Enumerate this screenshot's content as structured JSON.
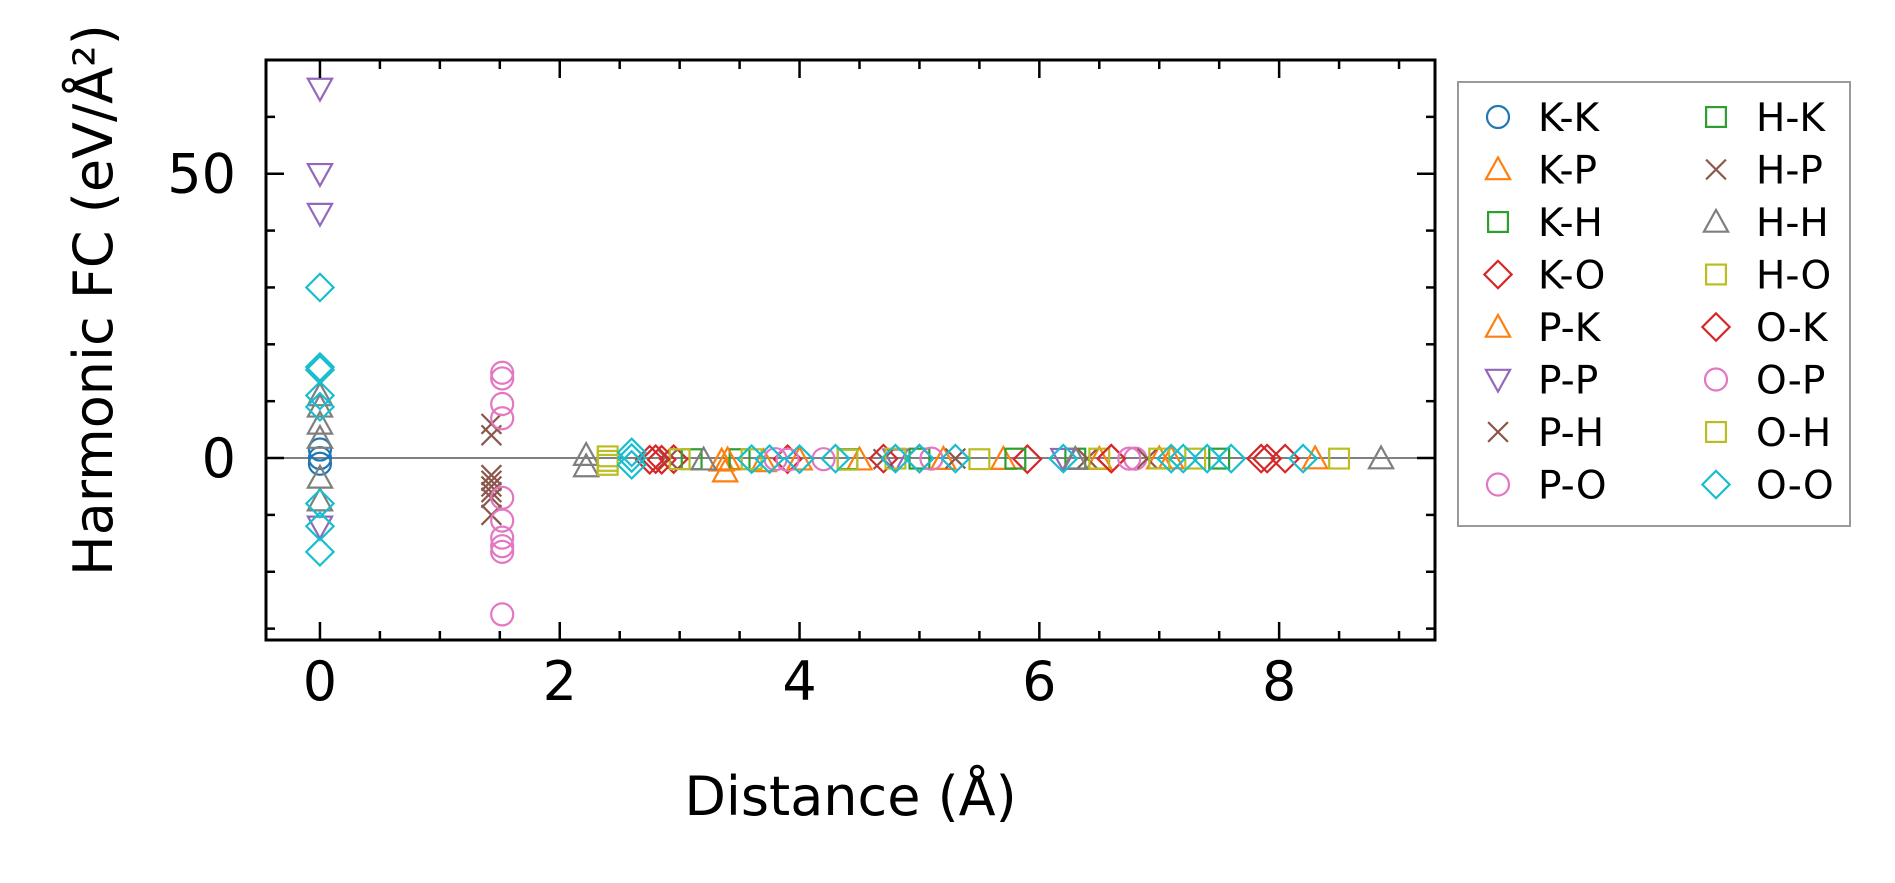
{
  "chart_data": {
    "type": "scatter",
    "title": "",
    "xlabel": "Distance (Å)",
    "ylabel": "Harmonic FC (eV/Å²)",
    "xlim": [
      -0.45,
      9.3
    ],
    "ylim": [
      -32,
      70
    ],
    "xticks": [
      0,
      2,
      4,
      6,
      8
    ],
    "yticks": [
      0,
      50
    ],
    "grid": false,
    "legend_position": "outside-right",
    "zero_line": 0,
    "series": [
      {
        "name": "K-K",
        "color": "#1f77b4",
        "marker": "circle",
        "points": [
          [
            0,
            0
          ],
          [
            0,
            1.5
          ],
          [
            0,
            -1
          ]
        ]
      },
      {
        "name": "K-P",
        "color": "#ff7f0e",
        "marker": "triangle-up",
        "points": [
          [
            3.35,
            -0.5
          ],
          [
            3.38,
            -2.4
          ],
          [
            4.0,
            -0.3
          ],
          [
            5.2,
            -0.2
          ],
          [
            6.5,
            -0.2
          ],
          [
            7.1,
            -0.1
          ],
          [
            8.3,
            -0.1
          ]
        ]
      },
      {
        "name": "K-H",
        "color": "#2ca02c",
        "marker": "square",
        "points": [
          [
            3.5,
            -0.2
          ],
          [
            5.0,
            -0.1
          ],
          [
            6.3,
            -0.1
          ],
          [
            7.5,
            -0.1
          ]
        ]
      },
      {
        "name": "K-O",
        "color": "#d62728",
        "marker": "diamond",
        "points": [
          [
            2.75,
            -0.3
          ],
          [
            2.85,
            -0.3
          ],
          [
            2.95,
            -0.2
          ],
          [
            3.9,
            -0.2
          ],
          [
            5.0,
            -0.1
          ],
          [
            5.9,
            -0.2
          ],
          [
            6.6,
            -0.1
          ],
          [
            7.85,
            -0.1
          ],
          [
            8.05,
            -0.1
          ]
        ]
      },
      {
        "name": "P-K",
        "color": "#ff7f0e",
        "marker": "triangle-up",
        "points": [
          [
            3.4,
            -0.3
          ],
          [
            3.7,
            -0.6
          ],
          [
            4.5,
            -0.3
          ],
          [
            5.7,
            -0.2
          ],
          [
            7.0,
            -0.1
          ]
        ]
      },
      {
        "name": "P-P",
        "color": "#9467bd",
        "marker": "triangle-down",
        "points": [
          [
            0,
            65
          ],
          [
            0,
            50
          ],
          [
            0,
            43
          ],
          [
            0,
            -12
          ],
          [
            4.8,
            -0.2
          ],
          [
            6.2,
            -0.1
          ]
        ]
      },
      {
        "name": "P-H",
        "color": "#8c564b",
        "marker": "x",
        "points": [
          [
            1.43,
            6
          ],
          [
            1.43,
            4
          ],
          [
            1.43,
            -3
          ],
          [
            1.43,
            -4
          ],
          [
            1.43,
            -5
          ],
          [
            1.43,
            -6
          ],
          [
            1.43,
            -7
          ],
          [
            1.43,
            -10
          ],
          [
            4.7,
            -0.2
          ],
          [
            6.4,
            -0.1
          ]
        ]
      },
      {
        "name": "P-O",
        "color": "#e377c2",
        "marker": "circle",
        "points": [
          [
            1.52,
            15
          ],
          [
            1.52,
            14
          ],
          [
            1.52,
            9.5
          ],
          [
            1.52,
            7
          ],
          [
            1.52,
            -7
          ],
          [
            1.52,
            -11
          ],
          [
            1.52,
            -14
          ],
          [
            1.52,
            -15.5
          ],
          [
            1.52,
            -16.5
          ],
          [
            1.52,
            -27.5
          ],
          [
            3.9,
            -0.3
          ],
          [
            4.2,
            -0.2
          ],
          [
            6.8,
            -0.1
          ]
        ]
      },
      {
        "name": "H-K",
        "color": "#2ca02c",
        "marker": "square",
        "points": [
          [
            3.1,
            -0.2
          ],
          [
            4.4,
            -0.2
          ],
          [
            5.8,
            -0.1
          ]
        ]
      },
      {
        "name": "H-P",
        "color": "#8c564b",
        "marker": "x",
        "points": [
          [
            2.9,
            -0.2
          ],
          [
            5.3,
            -0.1
          ],
          [
            6.9,
            -0.1
          ]
        ]
      },
      {
        "name": "H-H",
        "color": "#7f7f7f",
        "marker": "triangle-up",
        "points": [
          [
            0,
            11
          ],
          [
            0,
            9
          ],
          [
            0,
            6
          ],
          [
            0,
            3.5
          ],
          [
            0,
            -3.5
          ],
          [
            0,
            -7.5
          ],
          [
            2.22,
            0.5
          ],
          [
            2.22,
            -1.5
          ],
          [
            3.2,
            -0.3
          ],
          [
            6.3,
            -0.2
          ],
          [
            8.85,
            -0.1
          ]
        ]
      },
      {
        "name": "H-O",
        "color": "#bcbd22",
        "marker": "square",
        "points": [
          [
            2.4,
            -0.5
          ],
          [
            2.4,
            -1.2
          ],
          [
            2.4,
            0.3
          ],
          [
            3.0,
            -0.2
          ],
          [
            4.4,
            -0.3
          ],
          [
            5.5,
            -0.2
          ],
          [
            6.5,
            -0.1
          ],
          [
            7.3,
            -0.1
          ],
          [
            8.5,
            -0.1
          ]
        ]
      },
      {
        "name": "O-K",
        "color": "#d62728",
        "marker": "diamond",
        "points": [
          [
            2.8,
            -0.2
          ],
          [
            4.7,
            -0.1
          ],
          [
            6.6,
            -0.1
          ],
          [
            7.9,
            -0.1
          ]
        ]
      },
      {
        "name": "O-P",
        "color": "#e377c2",
        "marker": "circle",
        "points": [
          [
            3.8,
            -0.2
          ],
          [
            5.1,
            -0.1
          ],
          [
            6.75,
            -0.1
          ]
        ]
      },
      {
        "name": "O-H",
        "color": "#bcbd22",
        "marker": "square",
        "points": [
          [
            3.6,
            -0.2
          ],
          [
            4.8,
            -0.1
          ],
          [
            7.0,
            -0.1
          ]
        ]
      },
      {
        "name": "O-O",
        "color": "#17becf",
        "marker": "diamond",
        "points": [
          [
            0,
            30
          ],
          [
            0,
            16
          ],
          [
            0,
            15.5
          ],
          [
            0,
            11
          ],
          [
            0,
            9
          ],
          [
            0,
            -8
          ],
          [
            0,
            -12
          ],
          [
            0,
            -16.5
          ],
          [
            2.6,
            1
          ],
          [
            2.6,
            0
          ],
          [
            2.6,
            -1.2
          ],
          [
            3.6,
            -0.2
          ],
          [
            3.75,
            -0.2
          ],
          [
            4.0,
            -0.2
          ],
          [
            4.3,
            -0.1
          ],
          [
            4.8,
            -0.1
          ],
          [
            5.0,
            -0.1
          ],
          [
            5.3,
            -0.1
          ],
          [
            6.2,
            -0.1
          ],
          [
            7.1,
            -0.1
          ],
          [
            7.2,
            -0.1
          ],
          [
            7.4,
            -0.1
          ],
          [
            7.6,
            -0.1
          ],
          [
            8.2,
            -0.1
          ]
        ]
      }
    ]
  }
}
